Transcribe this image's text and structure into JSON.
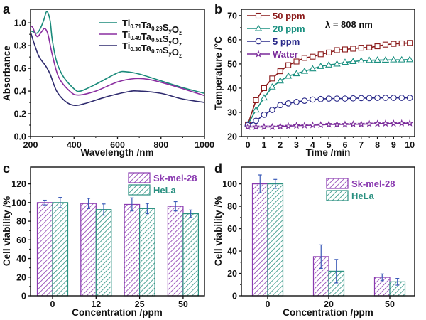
{
  "chart_data": [
    {
      "panel": "a",
      "type": "line",
      "xlabel": "Wavelength /nm",
      "ylabel": "Absorbance",
      "xlim": [
        200,
        1000
      ],
      "ylim": [
        0,
        1.12
      ],
      "xticks": [
        200,
        400,
        600,
        800,
        1000
      ],
      "yticks": [
        0.0,
        0.2,
        0.4,
        0.6,
        0.8,
        1.0
      ],
      "legend_position": "top-right",
      "series": [
        {
          "name": "Ti0.71Ta0.29SyOz",
          "color": "#1a8a7a",
          "x": [
            200,
            215,
            230,
            245,
            260,
            275,
            290,
            300,
            320,
            350,
            400,
            430,
            500,
            600,
            640,
            700,
            800,
            900,
            1000
          ],
          "y": [
            0.93,
            0.92,
            0.91,
            0.95,
            1.02,
            1.1,
            1.02,
            0.85,
            0.66,
            0.53,
            0.42,
            0.4,
            0.46,
            0.56,
            0.57,
            0.55,
            0.49,
            0.43,
            0.38
          ]
        },
        {
          "name": "Ti0.49Ta0.51SyOz",
          "color": "#8a2ea0",
          "x": [
            200,
            210,
            230,
            250,
            265,
            280,
            300,
            330,
            380,
            420,
            500,
            600,
            680,
            750,
            850,
            1000
          ],
          "y": [
            0.97,
            0.96,
            0.88,
            0.92,
            0.95,
            0.9,
            0.72,
            0.52,
            0.4,
            0.365,
            0.4,
            0.48,
            0.51,
            0.5,
            0.45,
            0.36
          ]
        },
        {
          "name": "Ti0.30Ta0.70SyOz",
          "color": "#2e2a6e",
          "x": [
            200,
            220,
            240,
            270,
            290,
            320,
            360,
            400,
            450,
            550,
            650,
            700,
            800,
            900,
            1000
          ],
          "y": [
            0.92,
            0.8,
            0.7,
            0.62,
            0.55,
            0.4,
            0.31,
            0.275,
            0.29,
            0.35,
            0.395,
            0.4,
            0.38,
            0.33,
            0.3
          ]
        }
      ]
    },
    {
      "panel": "b",
      "type": "line",
      "xlabel": "Time /min",
      "ylabel": "Temperature /°C",
      "annotation": "λ = 808 nm",
      "xlim": [
        -0.4,
        10.3
      ],
      "ylim": [
        20,
        72.6
      ],
      "xticks": [
        0,
        1,
        2,
        3,
        4,
        5,
        6,
        7,
        8,
        9,
        10
      ],
      "yticks": [
        20,
        30,
        40,
        50,
        60,
        70
      ],
      "legend_position": "top-left",
      "x": [
        0,
        0.5,
        1,
        1.5,
        2,
        2.5,
        3,
        3.5,
        4,
        4.5,
        5,
        5.5,
        6,
        6.5,
        7,
        7.5,
        8,
        8.5,
        9,
        9.5,
        10
      ],
      "series": [
        {
          "name": "50 ppm",
          "color": "#8b1a1a",
          "marker": "square",
          "y": [
            25,
            35,
            40,
            44,
            47,
            49.5,
            51,
            52.5,
            53,
            54,
            54.7,
            55.7,
            56,
            56.3,
            56.7,
            56.8,
            57.3,
            58,
            58.3,
            58.5,
            58.7
          ]
        },
        {
          "name": "20 ppm",
          "color": "#1a9080",
          "marker": "triangle",
          "y": [
            25,
            31,
            36,
            40.5,
            43,
            45,
            46,
            47,
            48,
            49,
            49.6,
            50,
            50.7,
            51,
            51.3,
            51.5,
            51.6,
            51.6,
            51.7,
            51.7,
            51.8
          ]
        },
        {
          "name": "5 ppm",
          "color": "#2a2a8a",
          "marker": "circle",
          "y": [
            24.7,
            26.5,
            29,
            31,
            33,
            33.7,
            34.3,
            34.8,
            35.3,
            35.5,
            35.7,
            35.7,
            35.7,
            35.8,
            35.9,
            35.9,
            36,
            36,
            36,
            36,
            36
          ]
        },
        {
          "name": "Water",
          "color": "#7a2a9a",
          "marker": "star",
          "y": [
            24,
            24,
            24,
            24,
            24.2,
            24.3,
            24.5,
            24.6,
            24.7,
            24.8,
            25,
            25,
            25,
            25.1,
            25.1,
            25.2,
            25.3,
            25.4,
            25.4,
            25.5,
            25.5
          ]
        }
      ]
    },
    {
      "panel": "c",
      "type": "bar",
      "xlabel": "Concentration /ppm",
      "ylabel": "Cell viability /%",
      "ylim": [
        0,
        138
      ],
      "yticks": [
        0,
        20,
        40,
        60,
        80,
        100,
        120
      ],
      "categories": [
        "0",
        "12",
        "25",
        "50"
      ],
      "legend_position": "top-right",
      "series": [
        {
          "name": "Sk-mel-28",
          "color": "#8a3ab0",
          "values": [
            100,
            99,
            98,
            96
          ],
          "errors": [
            2.5,
            5.5,
            7,
            5
          ]
        },
        {
          "name": "HeLa",
          "color": "#2a9080",
          "values": [
            100,
            92.5,
            93.5,
            88
          ],
          "errors": [
            5.5,
            6,
            5.5,
            4
          ]
        }
      ]
    },
    {
      "panel": "d",
      "type": "bar",
      "xlabel": "Concentration /ppm",
      "ylabel": "Cell viability /%",
      "ylim": [
        0,
        115
      ],
      "yticks": [
        0,
        20,
        40,
        60,
        80,
        100
      ],
      "categories": [
        "0",
        "20",
        "50"
      ],
      "legend_position": "top-right",
      "series": [
        {
          "name": "Sk-mel-28",
          "color": "#8a3ab0",
          "values": [
            100,
            35,
            16.5
          ],
          "errors": [
            8,
            10.5,
            3
          ]
        },
        {
          "name": "HeLa",
          "color": "#2a9080",
          "values": [
            100,
            22,
            12.5
          ],
          "errors": [
            4,
            10.5,
            3
          ]
        }
      ]
    }
  ],
  "colors": {
    "error_bar": "#3a5ab8",
    "axis": "#111111"
  }
}
